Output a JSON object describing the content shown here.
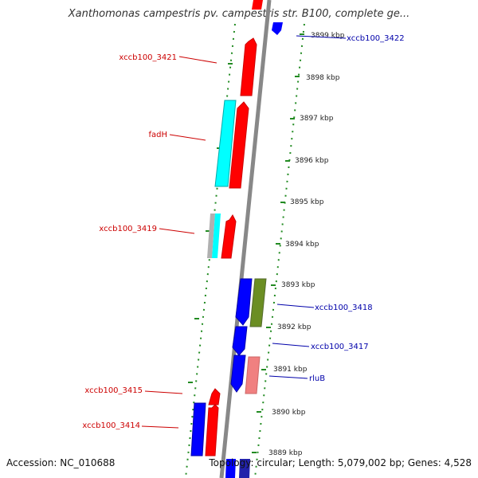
{
  "title": "Xanthomonas campestris pv. campestris str. B100, complete ge...",
  "footer": {
    "accession": "Accession: NC_010688",
    "topology": "Topology: circular; Length: 5,079,002 bp; Genes: 4,528"
  },
  "colors": {
    "forward_gene": "#ff0000",
    "reverse_gene": "#0000ff",
    "cyan_gene": "#00ffff",
    "olive_gene": "#6b8e23",
    "pink_gene": "#f08080",
    "grey_gene": "#b0b0b0",
    "backbone": "#888888",
    "tick_dots": "#228b22",
    "label_forward": "#cc0000",
    "label_reverse": "#0000aa"
  },
  "scale_labels": [
    "3899 kbp",
    "3898 kbp",
    "3897 kbp",
    "3896 kbp",
    "3895 kbp",
    "3894 kbp",
    "3893 kbp",
    "3892 kbp",
    "3891 kbp",
    "3890 kbp",
    "3889 kbp"
  ],
  "gene_labels_left": [
    "xccb100_3421",
    "fadH",
    "xccb100_3419",
    "xccb100_3415",
    "xccb100_3414"
  ],
  "gene_labels_right": [
    "xccb100_3422",
    "xccb100_3418",
    "xccb100_3417",
    "rluB"
  ]
}
